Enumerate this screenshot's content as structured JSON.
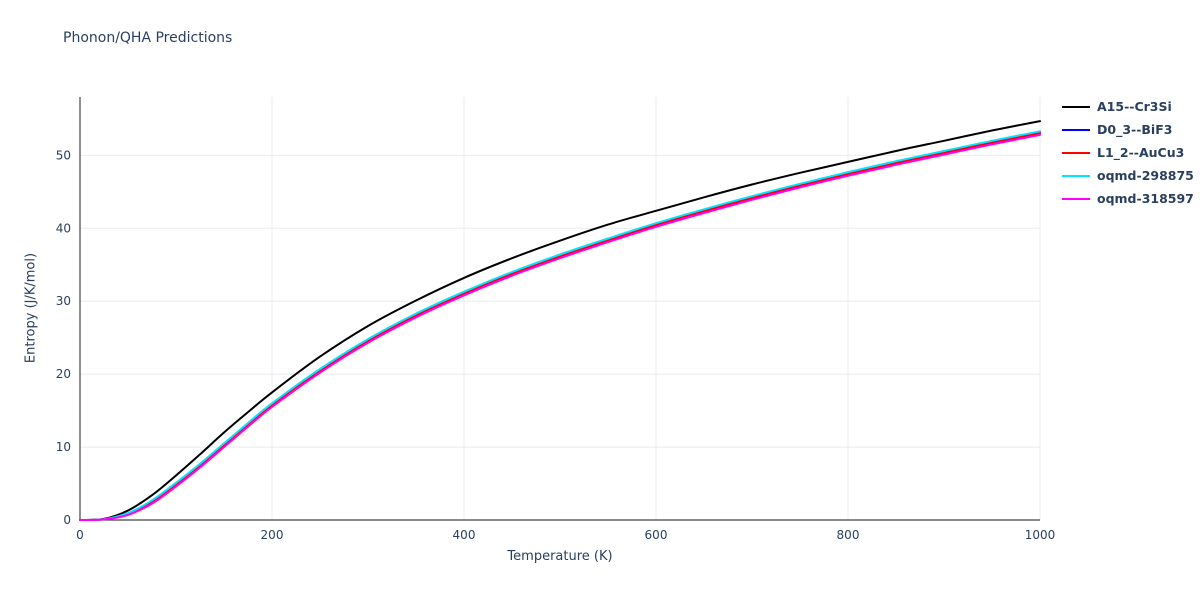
{
  "chart_data": {
    "type": "line",
    "title": "Phonon/QHA Predictions",
    "xlabel": "Temperature (K)",
    "ylabel": "Entropy (J/K/mol)",
    "xlim": [
      0,
      1000
    ],
    "ylim": [
      0,
      58
    ],
    "xticks": [
      0,
      200,
      400,
      600,
      800,
      1000
    ],
    "yticks": [
      0,
      10,
      20,
      30,
      40,
      50
    ],
    "grid": true,
    "legend_position": "top-right-outside",
    "x": [
      0,
      25,
      50,
      75,
      100,
      125,
      150,
      175,
      200,
      250,
      300,
      350,
      400,
      450,
      500,
      550,
      600,
      650,
      700,
      750,
      800,
      850,
      900,
      950,
      1000
    ],
    "series": [
      {
        "name": "A15--Cr3Si",
        "color": "#000000",
        "values": [
          0,
          0.15,
          1.3,
          3.4,
          6.1,
          9.0,
          12.0,
          14.8,
          17.5,
          22.4,
          26.6,
          30.1,
          33.2,
          35.9,
          38.3,
          40.5,
          42.4,
          44.25,
          46.0,
          47.6,
          49.1,
          50.6,
          52.0,
          53.4,
          54.7
        ]
      },
      {
        "name": "D0_3--BiF3",
        "color": "#0000ff",
        "values": [
          0,
          0.1,
          0.9,
          2.6,
          5.0,
          7.6,
          10.4,
          13.2,
          15.9,
          20.6,
          24.7,
          28.2,
          31.2,
          33.9,
          36.3,
          38.5,
          40.6,
          42.5,
          44.3,
          46.0,
          47.6,
          49.1,
          50.5,
          51.9,
          53.2
        ]
      },
      {
        "name": "L1_2--AuCu3",
        "color": "#ff0000",
        "values": [
          0,
          0.1,
          0.85,
          2.5,
          4.85,
          7.45,
          10.25,
          13.05,
          15.75,
          20.45,
          24.55,
          28.05,
          31.05,
          33.75,
          36.15,
          38.35,
          40.45,
          42.35,
          44.15,
          45.85,
          47.45,
          48.95,
          50.35,
          51.75,
          53.05
        ]
      },
      {
        "name": "oqmd-298875",
        "color": "#00e5ff",
        "values": [
          0,
          0.1,
          0.95,
          2.7,
          5.1,
          7.7,
          10.5,
          13.3,
          16.0,
          20.7,
          24.8,
          28.3,
          31.3,
          34.0,
          36.4,
          38.6,
          40.7,
          42.6,
          44.4,
          46.1,
          47.7,
          49.2,
          50.6,
          52.0,
          53.3
        ]
      },
      {
        "name": "oqmd-318597",
        "color": "#ff00ff",
        "values": [
          0,
          0.08,
          0.7,
          2.25,
          4.6,
          7.2,
          10.0,
          12.8,
          15.5,
          20.2,
          24.3,
          27.8,
          30.8,
          33.5,
          35.9,
          38.1,
          40.2,
          42.1,
          43.9,
          45.6,
          47.2,
          48.7,
          50.1,
          51.5,
          52.8
        ]
      }
    ]
  },
  "colors": {
    "title": "#2a3f5f",
    "axis": "#444444",
    "grid": "#e8ecf1",
    "tick": "#2a3f5f"
  }
}
